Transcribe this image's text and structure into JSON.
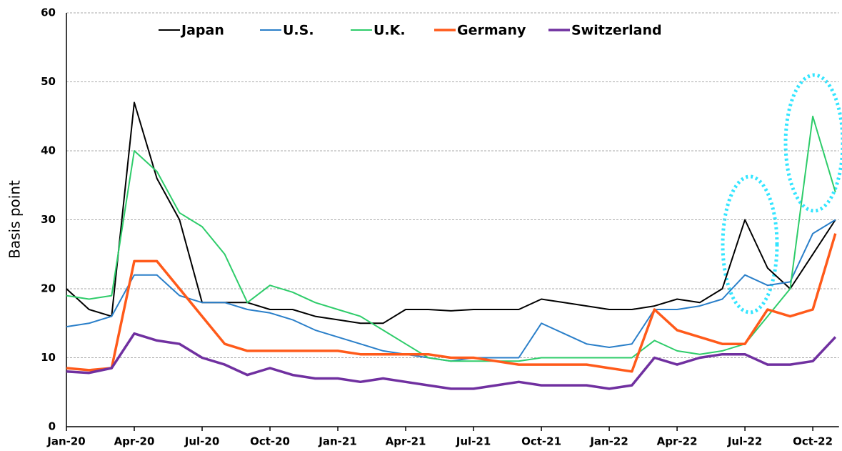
{
  "chart_data": {
    "type": "line",
    "y_label": "Basis point",
    "categories": [
      "Jan-20",
      null,
      null,
      "Apr-20",
      null,
      null,
      "Jul-20",
      null,
      null,
      "Oct-20",
      null,
      null,
      "Jan-21",
      null,
      null,
      "Apr-21",
      null,
      null,
      "Jul-21",
      null,
      null,
      "Oct-21",
      null,
      null,
      "Jan-22",
      null,
      null,
      "Apr-22",
      null,
      null,
      "Jul-22",
      null,
      null,
      "Oct-22",
      null
    ],
    "series": [
      {
        "name": "Japan",
        "color": "#000000",
        "width": 2,
        "values": [
          20,
          17,
          16,
          47,
          36,
          30,
          18,
          18,
          18,
          17,
          17,
          16,
          15.5,
          15,
          15,
          17,
          17,
          16.8,
          17,
          17,
          17,
          18.5,
          18,
          17.5,
          17,
          17,
          17.5,
          18.5,
          18,
          20,
          30,
          23,
          20,
          25,
          30
        ]
      },
      {
        "name": "U.S.",
        "color": "#2a7fc9",
        "width": 2,
        "values": [
          14.5,
          15,
          16,
          22,
          22,
          19,
          18,
          18,
          17,
          16.5,
          15.5,
          14,
          13,
          12,
          11,
          10.5,
          10,
          9.5,
          10,
          10,
          10,
          15,
          13.5,
          12,
          11.5,
          12,
          17,
          17,
          17.5,
          18.5,
          22,
          20.5,
          21,
          28,
          30
        ]
      },
      {
        "name": "U.K.",
        "color": "#2ecc6a",
        "width": 2,
        "values": [
          19,
          18.5,
          19,
          40,
          37,
          31,
          29,
          25,
          18,
          20.5,
          19.5,
          18,
          17,
          16,
          14,
          12,
          10,
          9.5,
          9.5,
          9.5,
          9.5,
          10,
          10,
          10,
          10,
          10,
          12.5,
          11,
          10.5,
          11,
          12,
          16,
          20,
          45,
          34
        ]
      },
      {
        "name": "Germany",
        "color": "#ff5a1a",
        "width": 3.5,
        "values": [
          8.5,
          8.2,
          8.5,
          24,
          24,
          20,
          16,
          12,
          11,
          11,
          11,
          11,
          11,
          10.5,
          10.5,
          10.5,
          10.5,
          10,
          10,
          9.5,
          9,
          9,
          9,
          9,
          8.5,
          8,
          17,
          14,
          13,
          12,
          12,
          17,
          16,
          17,
          28
        ]
      },
      {
        "name": "Switzerland",
        "color": "#7030a0",
        "width": 3.5,
        "values": [
          8,
          7.8,
          8.5,
          13.5,
          12.5,
          12,
          10,
          9,
          7.5,
          8.5,
          7.5,
          7,
          7,
          6.5,
          7,
          6.5,
          6,
          5.5,
          5.5,
          6,
          6.5,
          6,
          6,
          6,
          5.5,
          6,
          10,
          9,
          10,
          10.5,
          10.5,
          9,
          9,
          9.5,
          13
        ]
      }
    ],
    "ylim": [
      0,
      60
    ],
    "yticks": [
      0,
      10,
      20,
      30,
      40,
      50,
      60
    ],
    "grid": true,
    "legend": "top"
  }
}
